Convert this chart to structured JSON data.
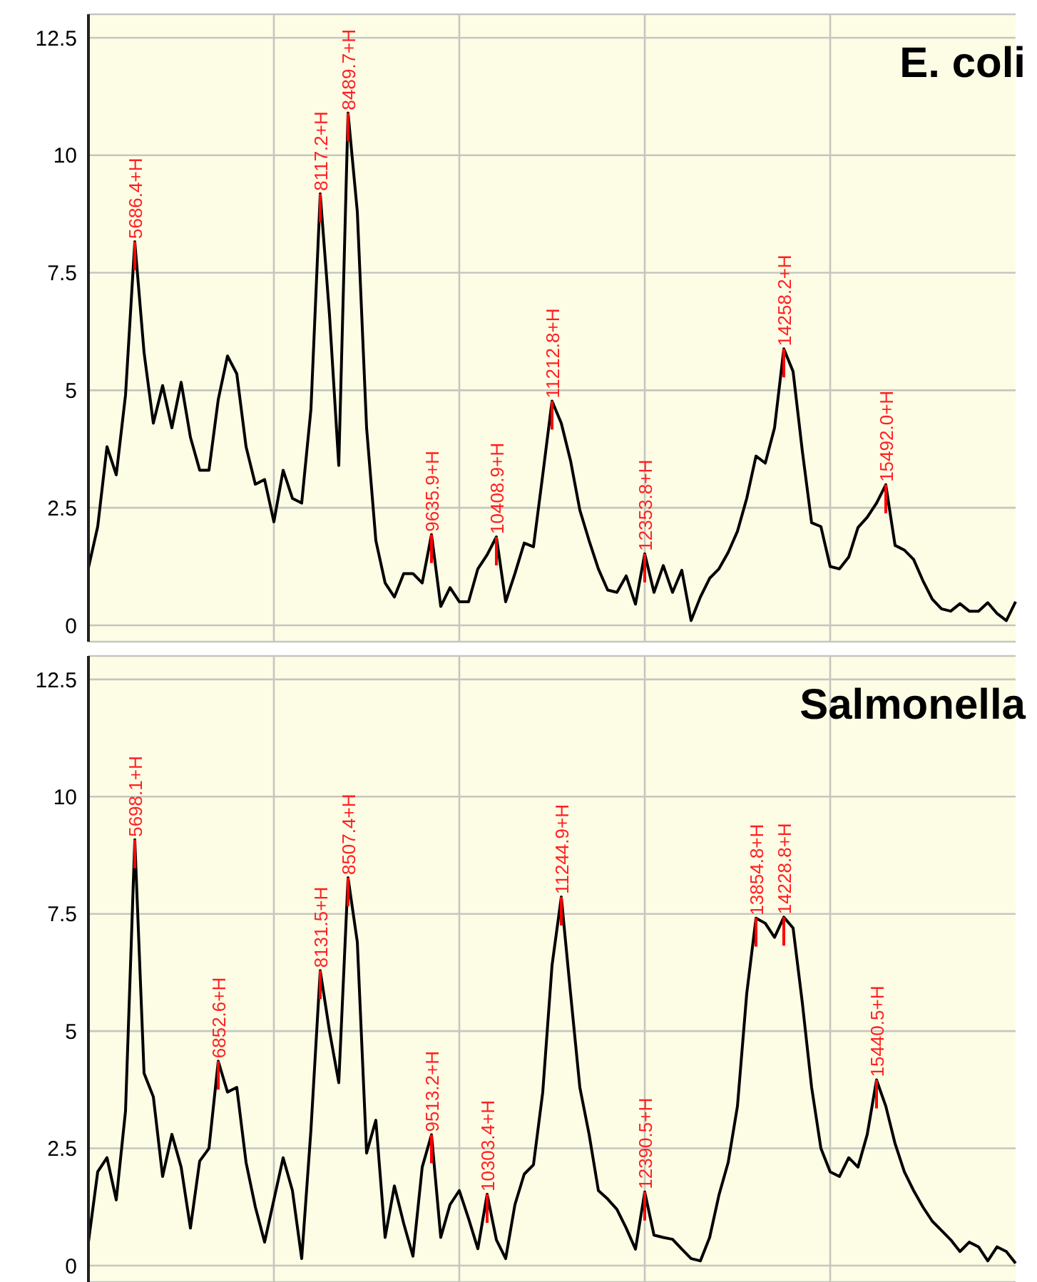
{
  "chart_data": [
    {
      "type": "line",
      "title": "E. coli",
      "color": "#000000",
      "ylim": [
        -0.35,
        13
      ],
      "yticks": [
        0,
        2.5,
        5,
        7.5,
        10,
        12.5
      ],
      "grid": true,
      "tick_labels": "y",
      "categories": [
        null,
        null,
        null,
        null,
        null,
        null,
        null,
        null,
        null,
        null,
        null,
        null,
        null,
        null,
        null,
        null,
        null,
        null,
        null,
        null,
        null,
        null,
        null,
        null,
        null,
        null,
        null,
        null,
        null,
        null,
        null,
        null,
        null,
        null,
        null,
        null,
        null,
        null,
        null,
        null,
        null,
        null,
        null,
        null,
        null,
        null,
        null,
        null,
        null,
        null,
        null,
        null,
        null,
        null,
        null,
        null,
        null,
        null,
        null,
        null,
        null,
        null,
        null,
        null,
        null,
        null,
        null,
        null,
        null,
        null,
        null,
        null,
        null,
        null,
        null,
        null,
        null,
        null,
        null,
        null,
        null,
        null,
        null,
        null,
        null,
        null,
        null,
        null,
        null,
        null,
        null,
        null,
        null,
        null,
        null,
        null,
        null,
        null,
        null,
        null,
        null
      ],
      "values": [
        1.22,
        2.1,
        3.8,
        3.2,
        4.9,
        8.16,
        5.8,
        4.3,
        5.1,
        4.2,
        5.17,
        4.0,
        3.3,
        3.3,
        4.8,
        5.73,
        5.35,
        3.8,
        3.0,
        3.1,
        2.2,
        3.3,
        2.7,
        2.6,
        4.6,
        9.18,
        6.6,
        3.4,
        10.9,
        8.8,
        4.2,
        1.8,
        0.9,
        0.6,
        1.1,
        1.1,
        0.9,
        1.93,
        0.4,
        0.8,
        0.5,
        0.5,
        1.2,
        1.5,
        1.88,
        0.5,
        1.1,
        1.75,
        1.67,
        3.2,
        4.77,
        4.3,
        3.5,
        2.45,
        1.8,
        1.2,
        0.75,
        0.7,
        1.05,
        0.45,
        1.52,
        0.7,
        1.27,
        0.7,
        1.17,
        0.1,
        0.6,
        1.0,
        1.2,
        1.55,
        2.0,
        2.7,
        3.6,
        3.45,
        4.2,
        5.88,
        5.4,
        3.7,
        2.18,
        2.1,
        1.25,
        1.2,
        1.45,
        2.08,
        2.3,
        2.6,
        2.99,
        1.7,
        1.6,
        1.4,
        0.95,
        0.56,
        0.35,
        0.3,
        0.46,
        0.3,
        0.3,
        0.48,
        0.25,
        0.1,
        0.5
      ],
      "value_labels": [
        null,
        null,
        null,
        null,
        null,
        "5686.4+H",
        null,
        null,
        null,
        null,
        null,
        null,
        null,
        null,
        null,
        null,
        null,
        null,
        null,
        null,
        null,
        null,
        null,
        null,
        null,
        "8117.2+H",
        null,
        null,
        "8489.7+H",
        null,
        null,
        null,
        null,
        null,
        null,
        null,
        null,
        "9635.9+H",
        null,
        null,
        null,
        null,
        null,
        null,
        "10408.9+H",
        null,
        null,
        null,
        null,
        null,
        "11212.8+H",
        null,
        null,
        null,
        null,
        null,
        null,
        null,
        null,
        null,
        "12353.8+H",
        null,
        null,
        null,
        null,
        null,
        null,
        null,
        null,
        null,
        null,
        null,
        null,
        null,
        null,
        "14258.2+H",
        null,
        null,
        null,
        null,
        null,
        null,
        null,
        null,
        null,
        null,
        "15492.0+H",
        null,
        null,
        null,
        null,
        null,
        null,
        null,
        null,
        null,
        null,
        null,
        null,
        null,
        null
      ]
    },
    {
      "type": "line",
      "title": "Salmonella",
      "color": "#000000",
      "ylim": [
        -0.35,
        13
      ],
      "yticks": [
        0,
        2.5,
        5,
        7.5,
        10,
        12.5
      ],
      "grid": true,
      "tick_labels": "y",
      "categories": [
        null,
        null,
        null,
        null,
        null,
        null,
        null,
        null,
        null,
        null,
        null,
        null,
        null,
        null,
        null,
        null,
        null,
        null,
        null,
        null,
        null,
        null,
        null,
        null,
        null,
        null,
        null,
        null,
        null,
        null,
        null,
        null,
        null,
        null,
        null,
        null,
        null,
        null,
        null,
        null,
        null,
        null,
        null,
        null,
        null,
        null,
        null,
        null,
        null,
        null,
        null,
        null,
        null,
        null,
        null,
        null,
        null,
        null,
        null,
        null,
        null,
        null,
        null,
        null,
        null,
        null,
        null,
        null,
        null,
        null,
        null,
        null,
        null,
        null,
        null,
        null,
        null,
        null,
        null,
        null,
        null,
        null,
        null,
        null,
        null,
        null,
        null,
        null,
        null,
        null,
        null,
        null,
        null,
        null,
        null,
        null,
        null,
        null,
        null,
        null,
        null
      ],
      "values": [
        0.5,
        2.0,
        2.3,
        1.4,
        3.3,
        9.08,
        4.1,
        3.6,
        1.9,
        2.8,
        2.1,
        0.8,
        2.23,
        2.5,
        4.36,
        3.7,
        3.8,
        2.2,
        1.25,
        0.5,
        1.4,
        2.3,
        1.6,
        0.15,
        2.9,
        6.29,
        5.0,
        3.9,
        8.27,
        6.9,
        2.4,
        3.1,
        0.6,
        1.7,
        0.9,
        0.2,
        2.1,
        2.79,
        0.6,
        1.3,
        1.6,
        1.0,
        0.36,
        1.52,
        0.55,
        0.15,
        1.3,
        1.95,
        2.15,
        3.7,
        6.4,
        7.86,
        5.8,
        3.8,
        2.8,
        1.6,
        1.42,
        1.2,
        0.8,
        0.35,
        1.57,
        0.65,
        0.6,
        0.56,
        0.35,
        0.15,
        0.1,
        0.6,
        1.5,
        2.2,
        3.4,
        5.8,
        7.41,
        7.3,
        7.0,
        7.43,
        7.2,
        5.6,
        3.8,
        2.5,
        2.0,
        1.9,
        2.3,
        2.1,
        2.8,
        3.96,
        3.4,
        2.6,
        2.0,
        1.6,
        1.25,
        0.95,
        0.75,
        0.55,
        0.3,
        0.5,
        0.4,
        0.1,
        0.4,
        0.3,
        0.05
      ],
      "value_labels": [
        null,
        null,
        null,
        null,
        null,
        "5698.1+H",
        null,
        null,
        null,
        null,
        null,
        null,
        null,
        null,
        "6852.6+H",
        null,
        null,
        null,
        null,
        null,
        null,
        null,
        null,
        null,
        null,
        "8131.5+H",
        null,
        null,
        "8507.4+H",
        null,
        null,
        null,
        null,
        null,
        null,
        null,
        null,
        "9513.2+H",
        null,
        null,
        null,
        null,
        null,
        "10303.4+H",
        null,
        null,
        null,
        null,
        null,
        null,
        null,
        "11244.9+H",
        null,
        null,
        null,
        null,
        null,
        null,
        null,
        null,
        "12390.5+H",
        null,
        null,
        null,
        null,
        null,
        null,
        null,
        null,
        null,
        null,
        null,
        "13854.8+H",
        null,
        null,
        "14228.8+H",
        null,
        null,
        null,
        null,
        null,
        null,
        null,
        null,
        null,
        "15440.5+H",
        null,
        null,
        null,
        null,
        null,
        null,
        null,
        null,
        null,
        null,
        null,
        null,
        null,
        null,
        null
      ]
    }
  ]
}
